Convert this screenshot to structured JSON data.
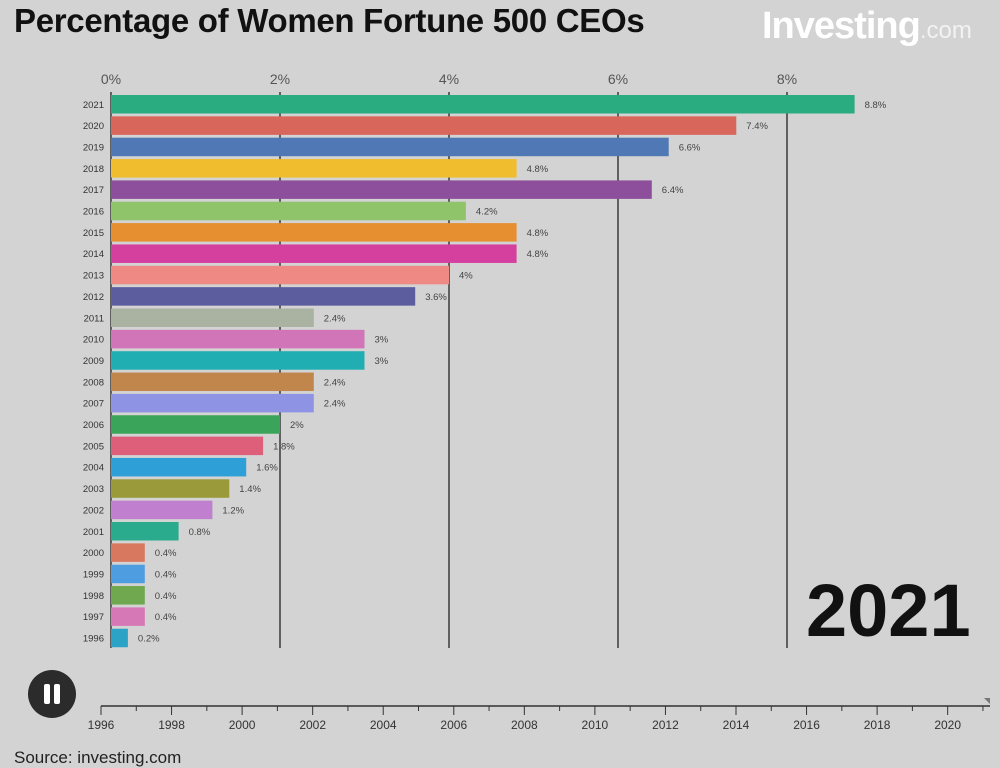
{
  "title": "Percentage of Women Fortune 500 CEOs",
  "logo": {
    "text": "Investing",
    "suffix": ".com"
  },
  "current_year": "2021",
  "source": "Source: investing.com",
  "play_button": {
    "icon": "pause-icon",
    "label": "Pause"
  },
  "chart_data": {
    "type": "bar",
    "orientation": "horizontal",
    "title": "Percentage of Women Fortune 500 CEOs",
    "xlabel": "",
    "ylabel": "",
    "xlim": [
      0,
      9
    ],
    "x_ticks": [
      0,
      2,
      4,
      6,
      8
    ],
    "x_tick_labels": [
      "0%",
      "2%",
      "4%",
      "6%",
      "8%"
    ],
    "grid": true,
    "categories": [
      "2021",
      "2020",
      "2019",
      "2018",
      "2017",
      "2016",
      "2015",
      "2014",
      "2013",
      "2012",
      "2011",
      "2010",
      "2009",
      "2008",
      "2007",
      "2006",
      "2005",
      "2004",
      "2003",
      "2002",
      "2001",
      "2000",
      "1999",
      "1998",
      "1997",
      "1996"
    ],
    "values": [
      8.8,
      7.4,
      6.6,
      4.8,
      6.4,
      4.2,
      4.8,
      4.8,
      4,
      3.6,
      2.4,
      3,
      3,
      2.4,
      2.4,
      2,
      1.8,
      1.6,
      1.4,
      1.2,
      0.8,
      0.4,
      0.4,
      0.4,
      0.4,
      0.2
    ],
    "value_labels": [
      "8.8%",
      "7.4%",
      "6.6%",
      "4.8%",
      "6.4%",
      "4.2%",
      "4.8%",
      "4.8%",
      "4%",
      "3.6%",
      "2.4%",
      "3%",
      "3%",
      "2.4%",
      "2.4%",
      "2%",
      "1.8%",
      "1.6%",
      "1.4%",
      "1.2%",
      "0.8%",
      "0.4%",
      "0.4%",
      "0.4%",
      "0.4%",
      "0.2%"
    ],
    "colors": [
      "#2aab80",
      "#d8665a",
      "#4f78b5",
      "#f0bd2e",
      "#8d4f9c",
      "#8fc46a",
      "#e58f31",
      "#d53f9e",
      "#ef8983",
      "#5c5d9e",
      "#aab2a2",
      "#d275b8",
      "#21aeb2",
      "#c0864b",
      "#8e94e3",
      "#3aa45b",
      "#de5f7a",
      "#2f9fd8",
      "#9a9a3a",
      "#c07fcf",
      "#2aab8e",
      "#d8785f",
      "#4d9de0",
      "#6fa84e",
      "#d678b6",
      "#2aa3c6"
    ]
  },
  "timeline": {
    "ticks": [
      "1996",
      "1998",
      "2000",
      "2002",
      "2004",
      "2006",
      "2008",
      "2010",
      "2012",
      "2014",
      "2016",
      "2018",
      "2020"
    ],
    "range": [
      1996,
      2021
    ],
    "current": 2021
  }
}
